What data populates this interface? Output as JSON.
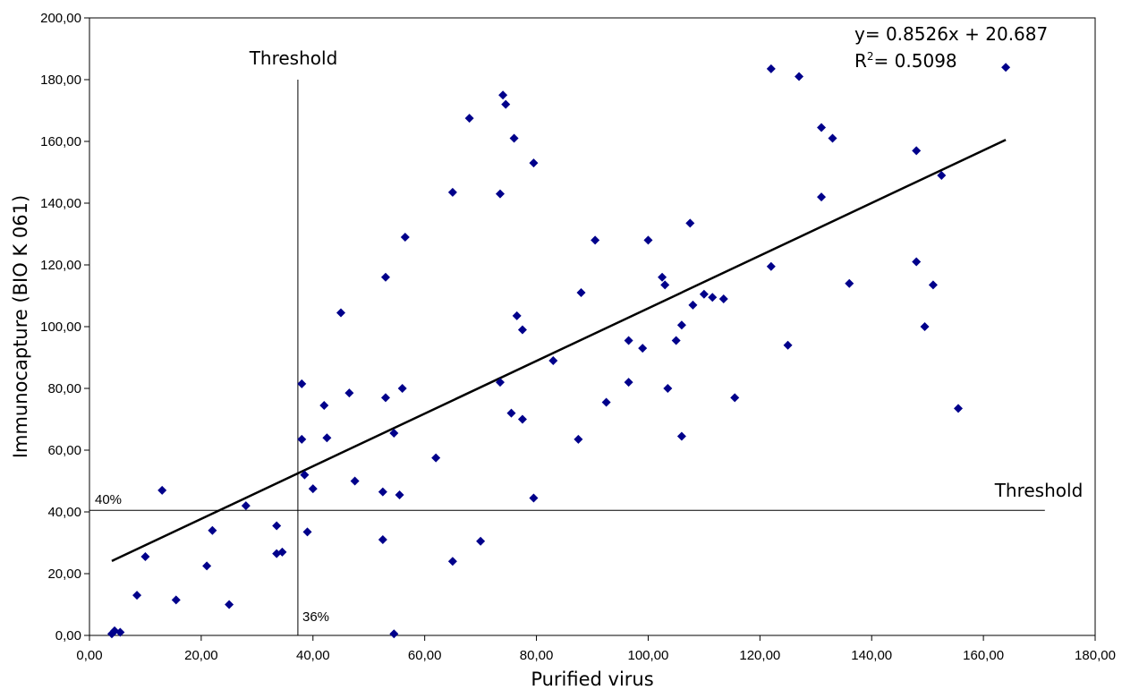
{
  "chart_data": {
    "type": "scatter",
    "title": "",
    "xlabel": "Purified virus",
    "ylabel": "Immunocapture (BIO K 061)",
    "xlim": [
      0,
      180
    ],
    "ylim": [
      0,
      200
    ],
    "x_ticks": [
      "0,00",
      "20,00",
      "40,00",
      "60,00",
      "80,00",
      "100,00",
      "120,00",
      "140,00",
      "160,00",
      "180,00"
    ],
    "y_ticks": [
      "0,00",
      "20,00",
      "40,00",
      "60,00",
      "80,00",
      "100,00",
      "120,00",
      "140,00",
      "160,00",
      "180,00",
      "200,00"
    ],
    "grid": false,
    "marker_color": "#00008b",
    "trendline": {
      "slope": 0.8526,
      "intercept": 20.687,
      "x_range": [
        4,
        164
      ],
      "equation_label": "y= 0.8526x + 20.687",
      "r2_prefix": "R",
      "r2_sup": "2",
      "r2_value": "= 0.5098"
    },
    "thresholds": {
      "vertical_x": 37.3,
      "vertical_label": "Threshold",
      "vertical_pct_label": "36%",
      "horizontal_y": 40.5,
      "horizontal_label": "Threshold",
      "horizontal_pct_label": "40%"
    },
    "points": [
      [
        4,
        0.5
      ],
      [
        4.5,
        1.5
      ],
      [
        5.5,
        1
      ],
      [
        8.5,
        13
      ],
      [
        10,
        25.5
      ],
      [
        13,
        47
      ],
      [
        15.5,
        11.5
      ],
      [
        21,
        22.5
      ],
      [
        22,
        34
      ],
      [
        25,
        10
      ],
      [
        28,
        42
      ],
      [
        33.5,
        26.5
      ],
      [
        33.5,
        35.5
      ],
      [
        34.5,
        27
      ],
      [
        38,
        81.5
      ],
      [
        38,
        63.5
      ],
      [
        38.5,
        52
      ],
      [
        39,
        33.5
      ],
      [
        40,
        47.5
      ],
      [
        42,
        74.5
      ],
      [
        42.5,
        64
      ],
      [
        45,
        104.5
      ],
      [
        46.5,
        78.5
      ],
      [
        47.5,
        50
      ],
      [
        52.5,
        46.5
      ],
      [
        52.5,
        31
      ],
      [
        53,
        116
      ],
      [
        53,
        77
      ],
      [
        54.5,
        65.5
      ],
      [
        54.5,
        0.5
      ],
      [
        55.5,
        45.5
      ],
      [
        56,
        80
      ],
      [
        56.5,
        129
      ],
      [
        62,
        57.5
      ],
      [
        65,
        143.5
      ],
      [
        65,
        24
      ],
      [
        68,
        167.5
      ],
      [
        70,
        30.5
      ],
      [
        73.5,
        82
      ],
      [
        73.5,
        143
      ],
      [
        74,
        175
      ],
      [
        74.5,
        172
      ],
      [
        75.5,
        72
      ],
      [
        76,
        161
      ],
      [
        76.5,
        103.5
      ],
      [
        77.5,
        99
      ],
      [
        77.5,
        70
      ],
      [
        79.5,
        153
      ],
      [
        79.5,
        44.5
      ],
      [
        83,
        89
      ],
      [
        87.5,
        63.5
      ],
      [
        88,
        111
      ],
      [
        92.5,
        75.5
      ],
      [
        90.5,
        128
      ],
      [
        96.5,
        95.5
      ],
      [
        96.5,
        82
      ],
      [
        99,
        93
      ],
      [
        100,
        128
      ],
      [
        102.5,
        116
      ],
      [
        103,
        113.5
      ],
      [
        103.5,
        80
      ],
      [
        105,
        95.5
      ],
      [
        106,
        100.5
      ],
      [
        106,
        64.5
      ],
      [
        107.5,
        133.5
      ],
      [
        108,
        107
      ],
      [
        110,
        110.5
      ],
      [
        111.5,
        109.5
      ],
      [
        113.5,
        109
      ],
      [
        115.5,
        77
      ],
      [
        122,
        183.5
      ],
      [
        122,
        119.5
      ],
      [
        125,
        94
      ],
      [
        127,
        181
      ],
      [
        131,
        164.5
      ],
      [
        131,
        142
      ],
      [
        133,
        161
      ],
      [
        136,
        114
      ],
      [
        148,
        157
      ],
      [
        148,
        121
      ],
      [
        149.5,
        100
      ],
      [
        151,
        113.5
      ],
      [
        152.5,
        149
      ],
      [
        155.5,
        73.5
      ],
      [
        164,
        184
      ]
    ]
  }
}
